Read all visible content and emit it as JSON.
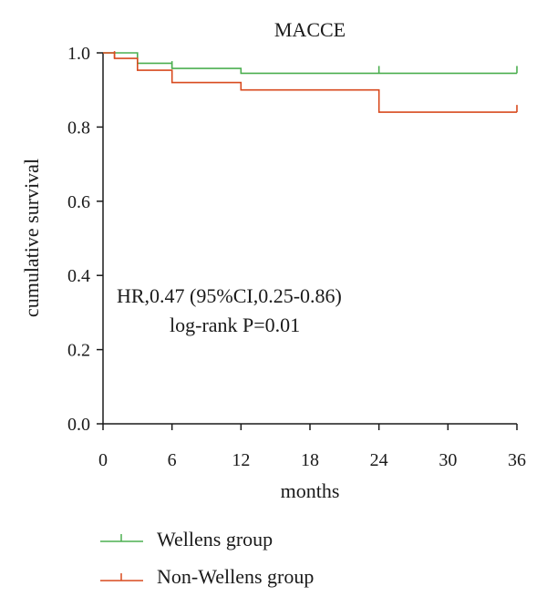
{
  "chart_data": {
    "type": "line",
    "step": true,
    "title": "MACCE",
    "xlabel": "months",
    "ylabel": "cumulative survival",
    "xlim": [
      0,
      36
    ],
    "ylim": [
      0,
      1.0
    ],
    "x_ticks": [
      "0",
      "6",
      "12",
      "18",
      "24",
      "30",
      "36"
    ],
    "y_ticks": [
      "0.0",
      "0.2",
      "0.4",
      "0.6",
      "0.8",
      "1.0"
    ],
    "grid": false,
    "legend_position": "bottom-left",
    "annotations": [
      "HR,0.47 (95%CI,0.25-0.86)",
      "log-rank P=0.01"
    ],
    "series": [
      {
        "name": "Wellens group",
        "color": "#4caf50",
        "points": [
          [
            0,
            1.0
          ],
          [
            3,
            1.0
          ],
          [
            3,
            0.972
          ],
          [
            6,
            0.972
          ],
          [
            6,
            0.958
          ],
          [
            12,
            0.958
          ],
          [
            12,
            0.945
          ],
          [
            36,
            0.945
          ]
        ],
        "censor_x": [
          6,
          24,
          36
        ]
      },
      {
        "name": "Non-Wellens group",
        "color": "#d84a1e",
        "points": [
          [
            0,
            1.0
          ],
          [
            1,
            1.0
          ],
          [
            1,
            0.985
          ],
          [
            3,
            0.985
          ],
          [
            3,
            0.953
          ],
          [
            6,
            0.953
          ],
          [
            6,
            0.92
          ],
          [
            12,
            0.92
          ],
          [
            12,
            0.9
          ],
          [
            24,
            0.9
          ],
          [
            24,
            0.84
          ],
          [
            36,
            0.84
          ]
        ],
        "censor_x": [
          1,
          36
        ]
      }
    ]
  }
}
